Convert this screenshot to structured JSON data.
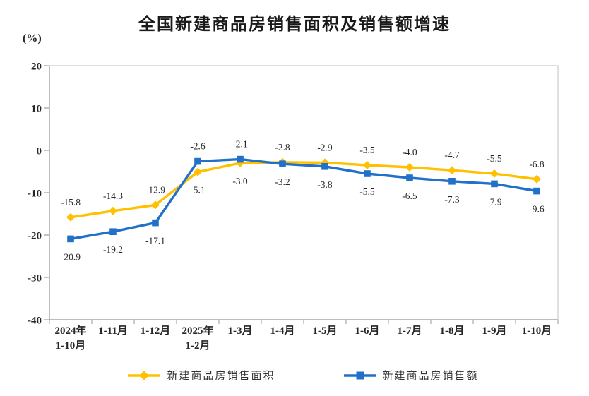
{
  "chart": {
    "title": "全国新建商品房销售面积及销售额增速",
    "unit": "(%)"
  },
  "chart_data": {
    "type": "line",
    "title": "全国新建商品房销售面积及销售额增速",
    "ylabel": "(%)",
    "xlabel": "",
    "categories": [
      "2024年\n1-10月",
      "1-11月",
      "1-12月",
      "2025年\n1-2月",
      "1-3月",
      "1-4月",
      "1-5月",
      "1-6月",
      "1-7月",
      "1-8月",
      "1-9月",
      "1-10月"
    ],
    "series": [
      {
        "name": "新建商品房销售面积",
        "marker": "diamond",
        "color": "#FFC000",
        "values": [
          -15.8,
          -14.3,
          -12.9,
          -5.1,
          -3.0,
          -2.8,
          -2.9,
          -3.5,
          -4.0,
          -4.7,
          -5.5,
          -6.8
        ]
      },
      {
        "name": "新建商品房销售额",
        "marker": "square",
        "color": "#2271C8",
        "values": [
          -20.9,
          -19.2,
          -17.1,
          -2.6,
          -2.1,
          -3.2,
          -3.8,
          -5.5,
          -6.5,
          -7.3,
          -7.9,
          -9.6
        ]
      }
    ],
    "ylim": [
      -40,
      20
    ],
    "y_ticks": [
      20,
      10,
      0,
      -10,
      -20,
      -30,
      -40
    ],
    "grid": false,
    "data_labels": true,
    "legend_position": "bottom"
  },
  "colors": {
    "axis": "#ababab",
    "border": "#d2d2d2",
    "text": "#262626"
  }
}
